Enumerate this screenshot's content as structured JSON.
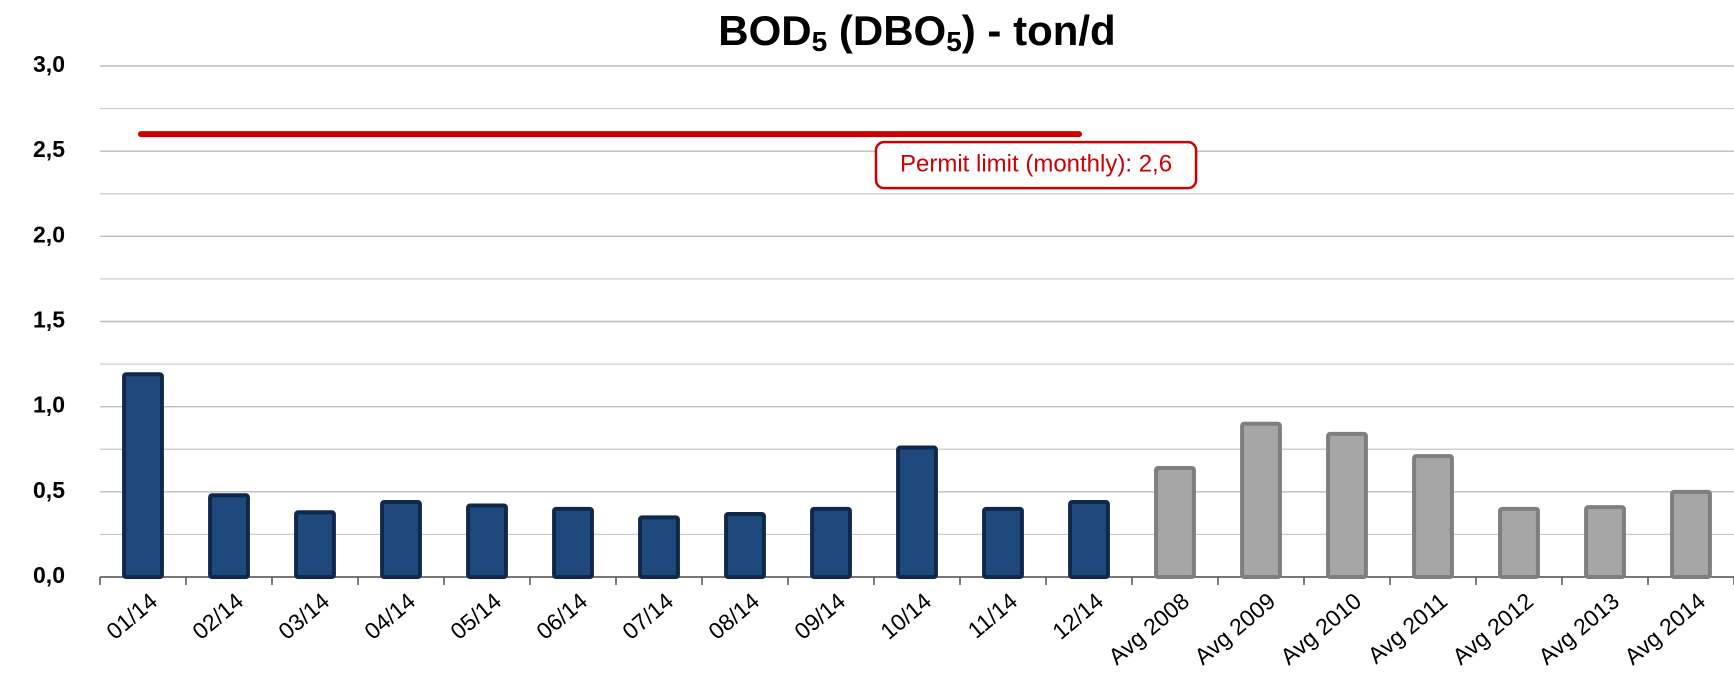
{
  "chart_data": {
    "type": "bar",
    "title": [
      "BOD",
      "5",
      " (DBO",
      "5",
      ") - ton/d"
    ],
    "categories": [
      "01/14",
      "02/14",
      "03/14",
      "04/14",
      "05/14",
      "06/14",
      "07/14",
      "08/14",
      "09/14",
      "10/14",
      "11/14",
      "12/14",
      "Avg 2008",
      "Avg 2009",
      "Avg 2010",
      "Avg 2011",
      "Avg 2012",
      "Avg 2013",
      "Avg 2014"
    ],
    "values": [
      1.19,
      0.48,
      0.38,
      0.44,
      0.42,
      0.4,
      0.35,
      0.37,
      0.4,
      0.76,
      0.4,
      0.44,
      0.64,
      0.9,
      0.84,
      0.71,
      0.4,
      0.41,
      0.5
    ],
    "colors": [
      "#1f497d",
      "#1f497d",
      "#1f497d",
      "#1f497d",
      "#1f497d",
      "#1f497d",
      "#1f497d",
      "#1f497d",
      "#1f497d",
      "#1f497d",
      "#1f497d",
      "#1f497d",
      "#a6a6a6",
      "#a6a6a6",
      "#a6a6a6",
      "#a6a6a6",
      "#a6a6a6",
      "#a6a6a6",
      "#a6a6a6"
    ],
    "ylim": [
      0,
      3
    ],
    "yticks": [
      {
        "value": 0,
        "label": "0,0"
      },
      {
        "value": 0.5,
        "label": "0,5"
      },
      {
        "value": 1,
        "label": "1,0"
      },
      {
        "value": 1.5,
        "label": "1,5"
      },
      {
        "value": 2,
        "label": "2,0"
      },
      {
        "value": 2.5,
        "label": "2,5"
      },
      {
        "value": 3,
        "label": "3,0"
      }
    ],
    "y_minor_ticks": [
      0.25,
      0.75,
      1.25,
      1.75,
      2.25,
      2.75
    ],
    "grid": true,
    "reference_line": {
      "value": 2.6,
      "label": "Permit limit (monthly): 2,6",
      "color": "#cc0000",
      "span": [
        "01/14",
        "12/14"
      ]
    }
  }
}
